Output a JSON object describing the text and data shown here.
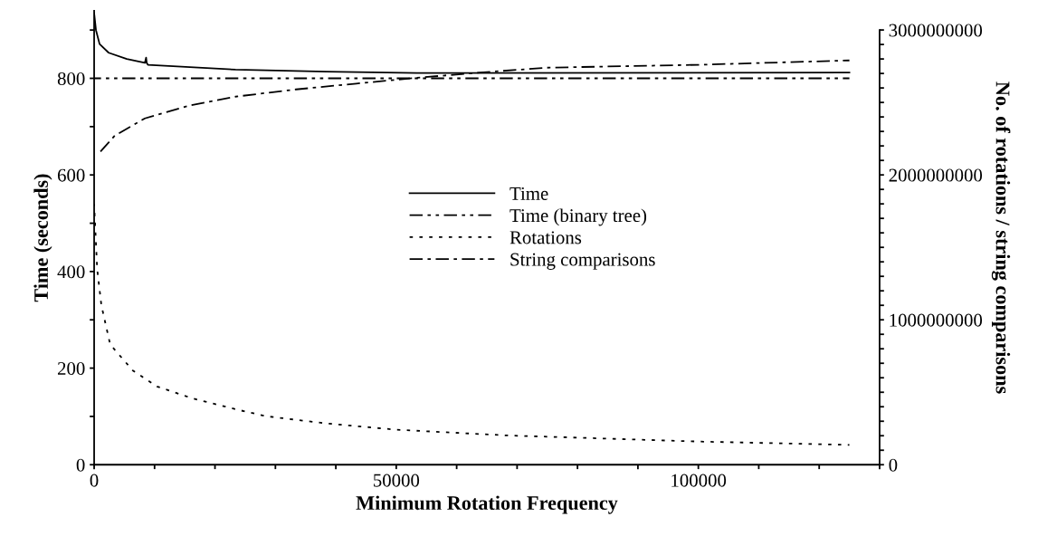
{
  "chart_data": {
    "type": "line",
    "xlabel": "Minimum Rotation Frequency",
    "ylabel": "Time (seconds)",
    "y2label": "No. of rotations / string comparisons",
    "xlim": [
      0,
      130000
    ],
    "xticks": [
      0,
      {
        "value": 10000,
        "label": null
      },
      {
        "value": 20000,
        "label": null
      },
      {
        "value": 30000,
        "label": null
      },
      {
        "value": 40000,
        "label": null
      },
      50000,
      {
        "value": 60000,
        "label": null
      },
      {
        "value": 70000,
        "label": null
      },
      {
        "value": 80000,
        "label": null
      },
      {
        "value": 90000,
        "label": null
      },
      100000,
      {
        "value": 110000,
        "label": null
      },
      {
        "value": 120000,
        "label": null
      },
      {
        "value": 130000,
        "label": null
      }
    ],
    "ylim": [
      0,
      940
    ],
    "yticks": [
      0,
      {
        "value": 100,
        "label": null
      },
      200,
      {
        "value": 300,
        "label": null
      },
      400,
      {
        "value": 500,
        "label": null
      },
      600,
      {
        "value": 700,
        "label": null
      },
      800,
      {
        "value": 900,
        "label": null
      }
    ],
    "y2lim": [
      0,
      3133000000
    ],
    "y2ticks": [
      0,
      {
        "value": 100000000,
        "label": null
      },
      {
        "value": 200000000,
        "label": null
      },
      {
        "value": 300000000,
        "label": null
      },
      {
        "value": 400000000,
        "label": null
      },
      {
        "value": 500000000,
        "label": null
      },
      {
        "value": 600000000,
        "label": null
      },
      {
        "value": 700000000,
        "label": null
      },
      {
        "value": 800000000,
        "label": null
      },
      {
        "value": 900000000,
        "label": null
      },
      1000000000,
      {
        "value": 1100000000,
        "label": null
      },
      {
        "value": 1200000000,
        "label": null
      },
      {
        "value": 1300000000,
        "label": null
      },
      {
        "value": 1400000000,
        "label": null
      },
      {
        "value": 1500000000,
        "label": null
      },
      {
        "value": 1600000000,
        "label": null
      },
      {
        "value": 1700000000,
        "label": null
      },
      {
        "value": 1800000000,
        "label": null
      },
      {
        "value": 1900000000,
        "label": null
      },
      2000000000,
      {
        "value": 2100000000,
        "label": null
      },
      {
        "value": 2200000000,
        "label": null
      },
      {
        "value": 2300000000,
        "label": null
      },
      {
        "value": 2400000000,
        "label": null
      },
      {
        "value": 2500000000,
        "label": null
      },
      {
        "value": 2600000000,
        "label": null
      },
      {
        "value": 2700000000,
        "label": null
      },
      {
        "value": 2800000000,
        "label": null
      },
      {
        "value": 2900000000,
        "label": null
      },
      3000000000
    ],
    "grid": false,
    "legend": "center",
    "marker": "none",
    "series": [
      {
        "name": "Time",
        "color": "#000000",
        "line_style": "solid",
        "x": [
          0,
          300,
          900,
          2400,
          5400,
          8400,
          8600,
          8700,
          8900,
          23400,
          38400,
          53400,
          125000
        ],
        "values": [
          935,
          900,
          871,
          853,
          840,
          832,
          843,
          832,
          828,
          818,
          814,
          811,
          812
        ]
      },
      {
        "name": "Time (binary tree)",
        "color": "#000000",
        "line_style": "dashdotdot",
        "x": [
          0,
          125000
        ],
        "values": [
          800,
          800
        ]
      },
      {
        "name": "Rotations",
        "color": "#000000",
        "line_style": "dotted",
        "axis": "y2",
        "x": [
          0,
          500,
          1200,
          2650,
          6400,
          10400,
          16400,
          23400,
          28400,
          38400,
          49900,
          68400,
          100000,
          125000
        ],
        "values": [
          1800000000,
          1350000000,
          1100000000,
          830000000,
          650000000,
          540000000,
          456000000,
          383000000,
          335000000,
          285000000,
          242000000,
          202000000,
          160000000,
          137000000
        ]
      },
      {
        "name": "String comparisons",
        "color": "#000000",
        "line_style": "dashdot",
        "axis": "y2",
        "x": [
          900,
          3400,
          8400,
          15900,
          23400,
          33400,
          43400,
          53400,
          65000,
          74900,
          100200,
          125000
        ],
        "values": [
          2154000000,
          2270000000,
          2390000000,
          2480000000,
          2540000000,
          2590000000,
          2630000000,
          2670000000,
          2710000000,
          2740000000,
          2760000000,
          2790000000
        ]
      }
    ]
  }
}
